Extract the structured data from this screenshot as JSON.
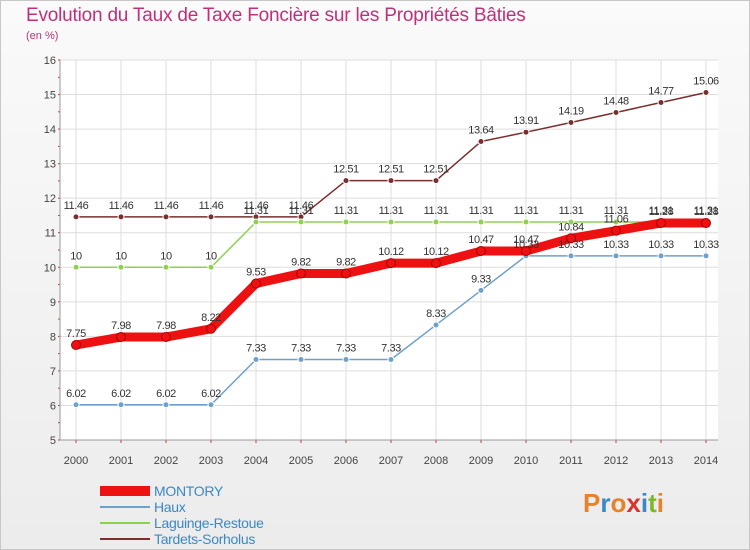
{
  "title": "Evolution du Taux de Taxe Foncière sur les Propriétés Bâties",
  "subtitle": "(en %)",
  "logo": {
    "text": "Proxiti",
    "letters": [
      "P",
      "r",
      "o",
      "x",
      "i",
      "t",
      "i"
    ],
    "colors": [
      "#e8822a",
      "#3a88c8",
      "#e8822a",
      "#d8322a",
      "#3a88c8",
      "#7cb82a",
      "#e8822a"
    ]
  },
  "chart_data": {
    "type": "line",
    "title": "Evolution du Taux de Taxe Foncière sur les Propriétés Bâties",
    "ylabel": "(en %)",
    "xlabel": "",
    "categories": [
      "2000",
      "2001",
      "2002",
      "2003",
      "2004",
      "2005",
      "2006",
      "2007",
      "2008",
      "2009",
      "2010",
      "2011",
      "2012",
      "2013",
      "2014"
    ],
    "ylim": [
      5,
      16
    ],
    "yticks": [
      "5",
      "6",
      "7",
      "8",
      "9",
      "10",
      "11",
      "12",
      "13",
      "14",
      "15",
      "16"
    ],
    "series": [
      {
        "name": "MONTORY",
        "color": "#ee1111",
        "values": [
          7.75,
          7.98,
          7.98,
          8.22,
          9.53,
          9.82,
          9.82,
          10.12,
          10.12,
          10.47,
          10.47,
          10.84,
          11.06,
          11.28,
          11.28
        ],
        "labels": [
          "7.75",
          "7.98",
          "7.98",
          "8.22",
          "9.53",
          "9.82",
          "9.82",
          "10.12",
          "10.12",
          "10.47",
          "10.47",
          "10.84",
          "11.06",
          "11.28",
          "11.28"
        ]
      },
      {
        "name": "Haux",
        "color": "#6fa0c8",
        "values": [
          6.02,
          6.02,
          6.02,
          6.02,
          7.33,
          7.33,
          7.33,
          7.33,
          8.33,
          9.33,
          10.33,
          10.33,
          10.33,
          10.33,
          10.33
        ],
        "labels": [
          "6.02",
          "6.02",
          "6.02",
          "6.02",
          "7.33",
          "7.33",
          "7.33",
          "7.33",
          "8.33",
          "9.33",
          "10.33",
          "10.33",
          "10.33",
          "10.33",
          "10.33"
        ]
      },
      {
        "name": "Laguinge-Restoue",
        "color": "#90d050",
        "values": [
          10,
          10,
          10,
          10,
          11.31,
          11.31,
          11.31,
          11.31,
          11.31,
          11.31,
          11.31,
          11.31,
          11.31,
          11.31,
          11.31
        ],
        "labels": [
          "10",
          "10",
          "10",
          "10",
          "11.31",
          "11.31",
          "11.31",
          "11.31",
          "11.31",
          "11.31",
          "11.31",
          "11.31",
          "11.31",
          "11.31",
          "11.31"
        ]
      },
      {
        "name": "Tardets-Sorholus",
        "color": "#7a2e2e",
        "values": [
          11.46,
          11.46,
          11.46,
          11.46,
          11.46,
          11.46,
          12.51,
          12.51,
          12.51,
          13.64,
          13.91,
          14.19,
          14.48,
          14.77,
          15.06
        ],
        "labels": [
          "11.46",
          "11.46",
          "11.46",
          "11.46",
          "11.46",
          "11.46",
          "12.51",
          "12.51",
          "12.51",
          "13.64",
          "13.91",
          "14.19",
          "14.48",
          "14.77",
          "15.06"
        ]
      }
    ],
    "legend": [
      "MONTORY",
      "Haux",
      "Laguinge-Restoue",
      "Tardets-Sorholus"
    ]
  }
}
